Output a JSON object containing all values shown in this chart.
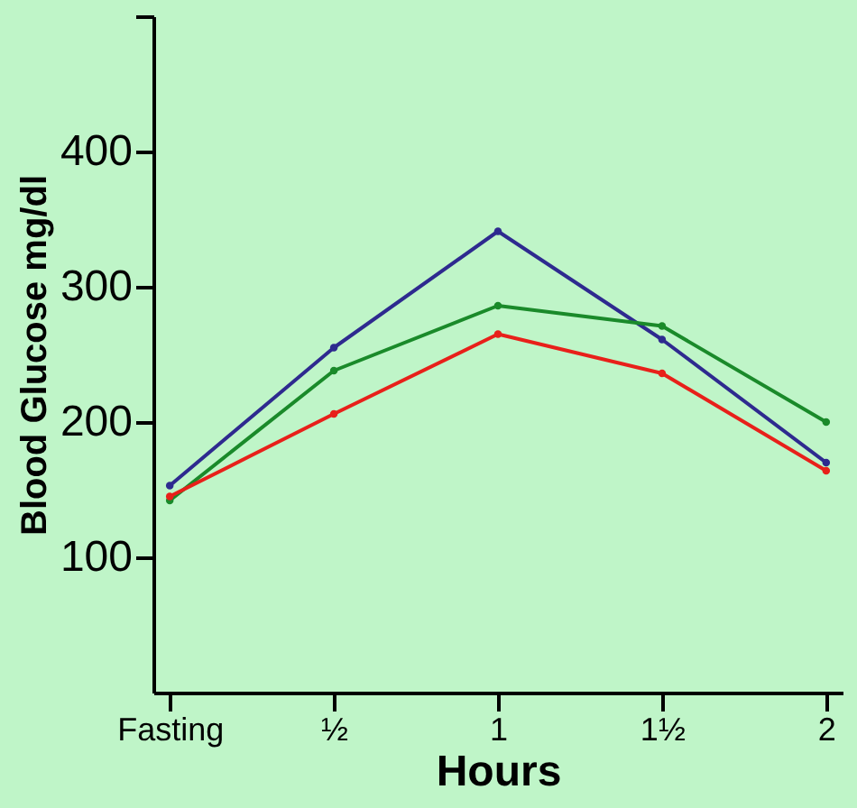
{
  "chart_data": {
    "type": "line",
    "xlabel": "Hours",
    "ylabel": "Blood Glucose mg/dl",
    "categories": [
      "Fasting",
      "½",
      "1",
      "1½",
      "2"
    ],
    "series": [
      {
        "color": "#2e2a8f",
        "values": [
          153,
          255,
          341,
          261,
          170
        ]
      },
      {
        "color": "#1a8a2a",
        "values": [
          142,
          238,
          286,
          271,
          200
        ]
      },
      {
        "color": "#e8201a",
        "values": [
          145,
          206,
          265,
          236,
          164
        ]
      }
    ],
    "ylim": [
      0,
      500
    ],
    "yticks": [
      100,
      200,
      300,
      400,
      {
        "value": 500,
        "label": null
      }
    ],
    "grid": false,
    "legend": false,
    "marker": "circle",
    "line_style": "solid"
  }
}
